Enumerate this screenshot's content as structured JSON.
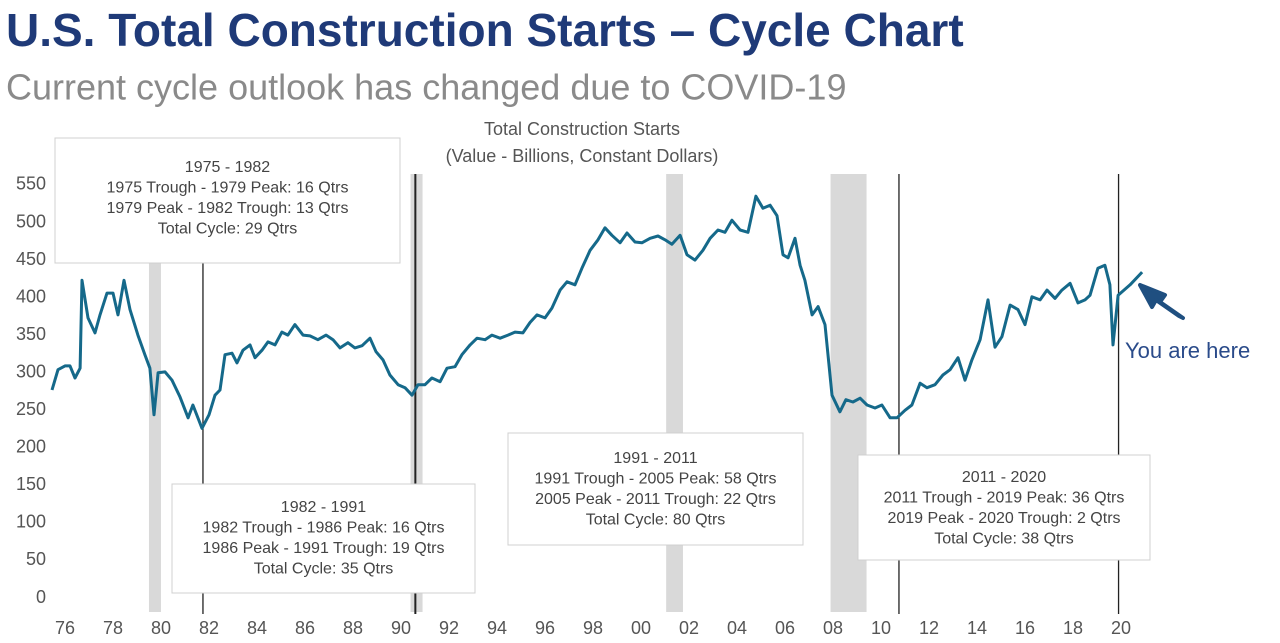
{
  "header": {
    "title": "U.S. Total Construction Starts – Cycle Chart",
    "subtitle": "Current cycle outlook has changed due to COVID-19"
  },
  "chart_data": {
    "type": "line",
    "title": "Total Construction Starts",
    "subtitle": "(Value  - Billions, Constant Dollars)",
    "color": "#15698a",
    "x": [
      1975.46,
      1975.71,
      1976.0,
      1976.21,
      1976.42,
      1976.63,
      1976.71,
      1976.96,
      1977.25,
      1977.46,
      1977.75,
      1978.0,
      1978.21,
      1978.46,
      1978.71,
      1979.04,
      1979.33,
      1979.54,
      1979.71,
      1979.88,
      1980.17,
      1980.46,
      1980.79,
      1981.13,
      1981.33,
      1981.71,
      1982.0,
      1982.25,
      1982.46,
      1982.67,
      1982.96,
      1983.17,
      1983.42,
      1983.71,
      1983.92,
      1984.21,
      1984.46,
      1984.75,
      1985.04,
      1985.29,
      1985.58,
      1985.92,
      1986.21,
      1986.54,
      1986.88,
      1987.17,
      1987.46,
      1987.79,
      1988.08,
      1988.38,
      1988.71,
      1988.96,
      1989.25,
      1989.54,
      1989.88,
      1990.17,
      1990.46,
      1990.71,
      1991.0,
      1991.29,
      1991.63,
      1991.92,
      1992.25,
      1992.54,
      1992.88,
      1993.17,
      1993.5,
      1993.79,
      1994.13,
      1994.46,
      1994.75,
      1995.08,
      1995.38,
      1995.67,
      1996.0,
      1996.29,
      1996.63,
      1996.92,
      1997.25,
      1997.54,
      1997.88,
      1998.21,
      1998.5,
      1998.79,
      1999.13,
      1999.42,
      1999.75,
      2000.04,
      2000.38,
      2000.71,
      2001.0,
      2001.29,
      2001.63,
      2001.92,
      2002.25,
      2002.58,
      2002.88,
      2003.21,
      2003.5,
      2003.79,
      2004.13,
      2004.46,
      2004.79,
      2005.08,
      2005.38,
      2005.67,
      2005.92,
      2006.13,
      2006.42,
      2006.63,
      2006.83,
      2007.13,
      2007.38,
      2007.67,
      2007.96,
      2008.29,
      2008.54,
      2008.83,
      2009.13,
      2009.42,
      2009.75,
      2010.04,
      2010.38,
      2010.67,
      2011.0,
      2011.29,
      2011.63,
      2011.92,
      2012.25,
      2012.58,
      2012.88,
      2013.21,
      2013.5,
      2013.79,
      2014.13,
      2014.46,
      2014.75,
      2015.04,
      2015.38,
      2015.71,
      2016.0,
      2016.29,
      2016.63,
      2016.92,
      2017.25,
      2017.54,
      2017.88,
      2018.21,
      2018.5,
      2018.71,
      2019.04,
      2019.33,
      2019.54,
      2019.67,
      2019.88,
      2020.38,
      2020.88
    ],
    "values": [
      277,
      304,
      309,
      309,
      293,
      306,
      423,
      373,
      353,
      377,
      406,
      406,
      377,
      423,
      384,
      350,
      324,
      306,
      244,
      300,
      301,
      290,
      268,
      240,
      257,
      226,
      244,
      270,
      277,
      324,
      326,
      313,
      330,
      337,
      320,
      330,
      341,
      337,
      354,
      350,
      364,
      350,
      349,
      344,
      350,
      344,
      333,
      340,
      333,
      336,
      346,
      328,
      317,
      297,
      284,
      280,
      270,
      284,
      284,
      293,
      288,
      306,
      308,
      324,
      337,
      346,
      344,
      350,
      346,
      350,
      354,
      353,
      367,
      377,
      373,
      386,
      410,
      421,
      417,
      439,
      463,
      477,
      493,
      483,
      473,
      486,
      474,
      473,
      479,
      482,
      477,
      471,
      483,
      457,
      450,
      463,
      479,
      490,
      487,
      503,
      490,
      487,
      535,
      519,
      523,
      509,
      457,
      453,
      479,
      443,
      423,
      377,
      388,
      364,
      270,
      248,
      264,
      261,
      266,
      257,
      253,
      257,
      240,
      240,
      250,
      257,
      286,
      280,
      284,
      297,
      304,
      320,
      290,
      317,
      344,
      397,
      334,
      348,
      390,
      384,
      364,
      401,
      397,
      410,
      399,
      410,
      419,
      393,
      397,
      403,
      439,
      443,
      417,
      337,
      403,
      417,
      434
    ],
    "xlim": [
      1975.46,
      2021.5
    ],
    "ylim": [
      0,
      560
    ],
    "yticks": [
      0,
      50,
      100,
      150,
      200,
      250,
      300,
      350,
      400,
      450,
      500,
      550
    ],
    "xticks": [
      {
        "value": 1976,
        "label": "76"
      },
      {
        "value": 1978,
        "label": "78"
      },
      {
        "value": 1980,
        "label": "80"
      },
      {
        "value": 1982,
        "label": "82"
      },
      {
        "value": 1984,
        "label": "84"
      },
      {
        "value": 1986,
        "label": "86"
      },
      {
        "value": 1988,
        "label": "88"
      },
      {
        "value": 1990,
        "label": "90"
      },
      {
        "value": 1992,
        "label": "92"
      },
      {
        "value": 1994,
        "label": "94"
      },
      {
        "value": 1996,
        "label": "96"
      },
      {
        "value": 1998,
        "label": "98"
      },
      {
        "value": 2000,
        "label": "00"
      },
      {
        "value": 2002,
        "label": "02"
      },
      {
        "value": 2004,
        "label": "04"
      },
      {
        "value": 2006,
        "label": "06"
      },
      {
        "value": 2008,
        "label": "08"
      },
      {
        "value": 2010,
        "label": "10"
      },
      {
        "value": 2012,
        "label": "12"
      },
      {
        "value": 2014,
        "label": "14"
      },
      {
        "value": 2016,
        "label": "16"
      },
      {
        "value": 2018,
        "label": "18"
      },
      {
        "value": 2020,
        "label": "20"
      }
    ],
    "recessions": [
      [
        1979.5,
        1980.0
      ],
      [
        1990.4,
        1990.9
      ],
      [
        2001.05,
        2001.75
      ],
      [
        2007.9,
        2009.4
      ]
    ],
    "cycle_lines": [
      1981.75,
      1990.6,
      2010.75,
      2019.9
    ],
    "annotations": [
      {
        "lines": [
          "1975 - 1982",
          "1975 Trough - 1979 Peak: 16 Qtrs",
          "1979 Peak - 1982 Trough: 13 Qtrs",
          "Total Cycle: 29 Qtrs"
        ]
      },
      {
        "lines": [
          "1982 - 1991",
          "1982 Trough - 1986 Peak: 16 Qtrs",
          "1986 Peak - 1991 Trough: 19 Qtrs",
          "Total Cycle: 35 Qtrs"
        ]
      },
      {
        "lines": [
          "1991 - 2011",
          "1991 Trough - 2005 Peak: 58 Qtrs",
          "2005 Peak  - 2011 Trough: 22 Qtrs",
          "Total Cycle: 80 Qtrs"
        ]
      },
      {
        "lines": [
          "2011 - 2020",
          "2011 Trough - 2019 Peak: 36 Qtrs",
          "2019 Peak - 2020 Trough: 2 Qtrs",
          "Total Cycle: 38 Qtrs"
        ]
      }
    ],
    "marker_label": "You are here"
  }
}
